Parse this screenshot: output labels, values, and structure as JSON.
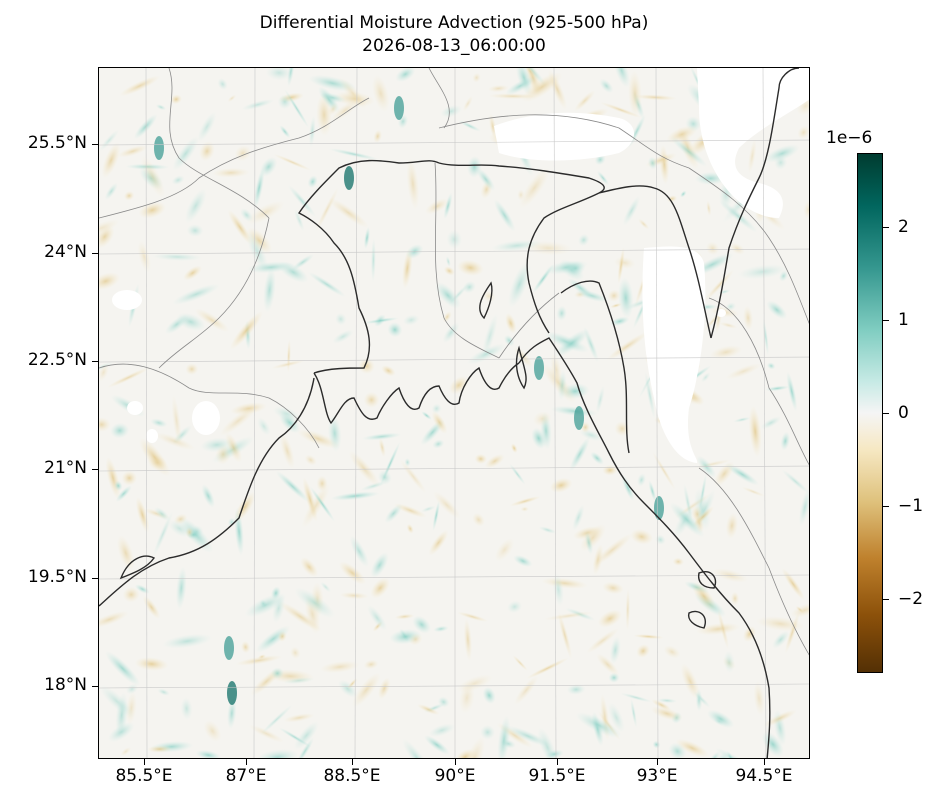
{
  "title": "Differential Moisture Advection (925-500 hPa)",
  "subtitle": "2026-08-13_06:00:00",
  "map": {
    "projection": "lat-lon",
    "extent": {
      "lon_min": 84.5,
      "lon_max": 95.0,
      "lat_min": 16.8,
      "lat_max": 26.8
    },
    "field": "differential moisture advection",
    "colormap": "BrBG (brown negative, white zero, teal positive)",
    "masked_regions": "white (missing over high terrain)",
    "latitude_labels": [
      "25.5°N",
      "24°N",
      "22.5°N",
      "21°N",
      "19.5°N",
      "18°N"
    ],
    "longitude_labels": [
      "85.5°E",
      "87°E",
      "88.5°E",
      "90°E",
      "91.5°E",
      "93°E",
      "94.5°E"
    ],
    "coastline_color": "#2b2b2b",
    "border_color": "#8a8a8a",
    "gridlines": true
  },
  "colorbar": {
    "exponent_label": "1e−6",
    "tick_labels": [
      "2",
      "1",
      "0",
      "−1",
      "−2"
    ],
    "tick_values": [
      2,
      1,
      0,
      -1,
      -2
    ],
    "vmin": -2.8,
    "vmax": 2.8,
    "colors": {
      "positive": "#01665e",
      "zero": "#f5f5f5",
      "negative": "#8c510a"
    }
  }
}
